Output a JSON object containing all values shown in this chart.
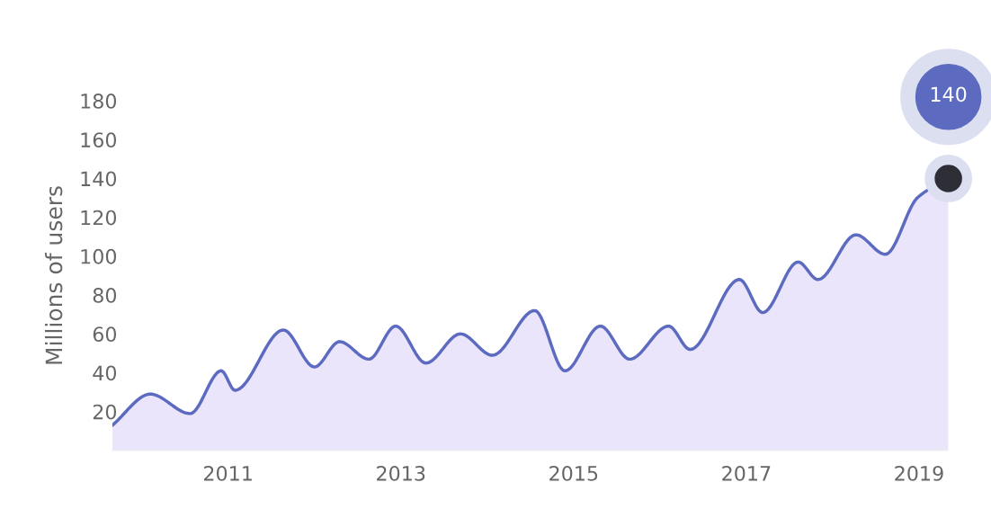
{
  "chart_data": {
    "type": "area",
    "ylabel": "Millions of users",
    "x": [
      2009.66,
      2010.1,
      2010.56,
      2010.92,
      2011.08,
      2011.64,
      2012.0,
      2012.29,
      2012.63,
      2012.94,
      2013.29,
      2013.69,
      2014.06,
      2014.55,
      2014.9,
      2015.31,
      2015.65,
      2016.1,
      2016.35,
      2016.92,
      2017.19,
      2017.6,
      2017.83,
      2018.27,
      2018.61,
      2018.98,
      2019.34
    ],
    "series": [
      {
        "color": "#5c6bc0",
        "values": [
          13,
          29,
          19,
          41,
          31,
          62,
          43,
          56,
          47,
          64,
          45,
          60,
          49,
          72,
          41,
          64,
          47,
          64,
          52,
          88,
          71,
          97,
          88,
          111,
          101,
          130,
          140
        ],
        "value_labels": [
          null,
          null,
          null,
          null,
          null,
          null,
          null,
          null,
          null,
          null,
          null,
          null,
          null,
          null,
          null,
          null,
          null,
          null,
          null,
          null,
          null,
          null,
          null,
          null,
          null,
          null,
          "140"
        ]
      }
    ],
    "xlim": [
      2009.66,
      2019.34
    ],
    "xticks": [
      2011,
      2013,
      2015,
      2017,
      2019
    ],
    "ylim": [
      0,
      180
    ],
    "yticks": [
      20,
      40,
      60,
      80,
      100,
      120,
      140,
      160,
      180
    ],
    "grid": false,
    "legend": false
  }
}
